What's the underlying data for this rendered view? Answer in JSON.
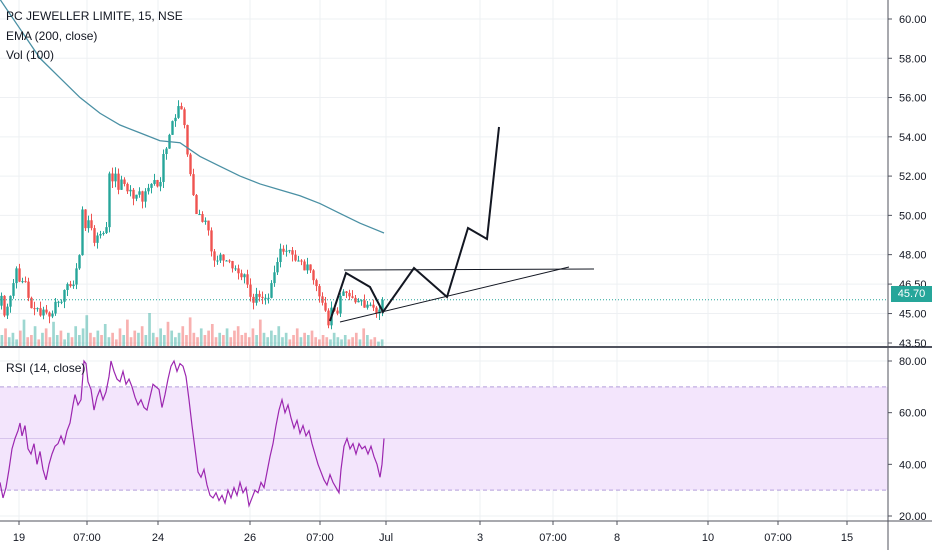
{
  "header": {
    "symbol_line": "PC JEWELLER LIMITE, 15, NSE",
    "ema_label": "EMA (200, close)",
    "vol_label": "Vol (100)",
    "rsi_label": "RSI (14, close)"
  },
  "last_price": "45.70",
  "colors": {
    "up": "#26a69a",
    "down": "#ef5350",
    "ema": "#4a90a4",
    "rsi": "#9c27b0",
    "rsi_band": "#f3e5fc",
    "last_price_line": "#26a69a",
    "drawing": "#131722"
  },
  "chart_data": [
    {
      "type": "candlestick",
      "title": "PC JEWELLER LIMITE, 15, NSE",
      "price_axis_ticks": [
        "60.00",
        "58.00",
        "56.00",
        "54.00",
        "52.00",
        "50.00",
        "48.00",
        "46.50",
        "45.00",
        "43.50"
      ],
      "time_axis_ticks": [
        "19",
        "07:00",
        "24",
        "26",
        "07:00",
        "Jul",
        "3",
        "07:00",
        "8",
        "10",
        "07:00",
        "15"
      ],
      "ylim": [
        43.0,
        61.5
      ],
      "price_path": [
        [
          0,
          45.4
        ],
        [
          3,
          45.9
        ],
        [
          6,
          44.9
        ],
        [
          10,
          45.5
        ],
        [
          14,
          46.3
        ],
        [
          18,
          47.3
        ],
        [
          22,
          46.4
        ],
        [
          26,
          46.9
        ],
        [
          30,
          45.8
        ],
        [
          34,
          45.1
        ],
        [
          38,
          45.4
        ],
        [
          42,
          44.9
        ],
        [
          46,
          45.3
        ],
        [
          50,
          44.8
        ],
        [
          54,
          45.0
        ],
        [
          58,
          45.8
        ],
        [
          62,
          45.4
        ],
        [
          66,
          46.2
        ],
        [
          70,
          46.6
        ],
        [
          74,
          46.2
        ],
        [
          78,
          47.3
        ],
        [
          82,
          48.2
        ],
        [
          84,
          50.3
        ],
        [
          86,
          48.8
        ],
        [
          88,
          49.9
        ],
        [
          92,
          49.6
        ],
        [
          96,
          48.6
        ],
        [
          100,
          49.1
        ],
        [
          104,
          49.0
        ],
        [
          108,
          49.4
        ],
        [
          110,
          52.5
        ],
        [
          113,
          51.4
        ],
        [
          116,
          52.4
        ],
        [
          120,
          51.3
        ],
        [
          124,
          52.0
        ],
        [
          128,
          51.2
        ],
        [
          132,
          51.3
        ],
        [
          136,
          50.7
        ],
        [
          140,
          51.4
        ],
        [
          144,
          50.7
        ],
        [
          148,
          51.4
        ],
        [
          152,
          51.4
        ],
        [
          155,
          52.0
        ],
        [
          158,
          51.4
        ],
        [
          162,
          51.7
        ],
        [
          166,
          53.6
        ],
        [
          170,
          53.2
        ],
        [
          172,
          55.0
        ],
        [
          175,
          54.7
        ],
        [
          178,
          55.1
        ],
        [
          181,
          55.8
        ],
        [
          184,
          55.2
        ],
        [
          187,
          54.3
        ],
        [
          190,
          52.5
        ],
        [
          193,
          51.9
        ],
        [
          196,
          50.6
        ],
        [
          199,
          49.8
        ],
        [
          202,
          50.2
        ],
        [
          205,
          49.4
        ],
        [
          208,
          49.9
        ],
        [
          211,
          48.9
        ],
        [
          214,
          47.8
        ],
        [
          218,
          47.6
        ],
        [
          222,
          48.0
        ],
        [
          226,
          47.6
        ],
        [
          230,
          47.8
        ],
        [
          234,
          47.3
        ],
        [
          238,
          47.3
        ],
        [
          242,
          46.8
        ],
        [
          246,
          47.0
        ],
        [
          250,
          46.3
        ],
        [
          254,
          45.4
        ],
        [
          258,
          46.0
        ],
        [
          262,
          45.8
        ],
        [
          266,
          45.8
        ],
        [
          270,
          45.8
        ],
        [
          274,
          46.8
        ],
        [
          278,
          47.4
        ],
        [
          282,
          48.3
        ],
        [
          286,
          48.1
        ],
        [
          290,
          48.3
        ],
        [
          294,
          48.0
        ],
        [
          298,
          47.6
        ],
        [
          302,
          47.8
        ],
        [
          306,
          47.2
        ],
        [
          310,
          47.6
        ],
        [
          314,
          46.8
        ],
        [
          318,
          46.4
        ],
        [
          322,
          45.7
        ],
        [
          326,
          45.4
        ],
        [
          330,
          44.4
        ],
        [
          334,
          45.6
        ],
        [
          338,
          44.7
        ],
        [
          342,
          45.9
        ],
        [
          346,
          46.2
        ],
        [
          350,
          45.9
        ],
        [
          354,
          45.8
        ],
        [
          358,
          45.5
        ],
        [
          362,
          45.8
        ],
        [
          366,
          45.3
        ],
        [
          370,
          45.5
        ],
        [
          374,
          45.4
        ],
        [
          378,
          45.0
        ],
        [
          381,
          45.2
        ],
        [
          384,
          45.7
        ]
      ],
      "volume_bars": [
        5,
        8,
        4,
        6,
        3,
        7,
        12,
        4,
        5,
        9,
        3,
        6,
        8,
        4,
        11,
        5,
        7,
        3,
        6,
        4,
        9,
        5,
        8,
        14,
        6,
        4,
        7,
        5,
        10,
        4,
        6,
        3,
        8,
        5,
        12,
        4,
        7,
        6,
        9,
        5,
        15,
        6,
        4,
        8,
        5,
        11,
        7,
        4,
        6,
        9,
        5,
        13,
        6,
        4,
        8,
        5,
        7,
        10,
        4,
        6,
        5,
        8,
        4,
        7,
        9,
        5,
        6,
        4,
        8,
        5,
        12,
        6,
        4,
        7,
        5,
        9,
        4,
        6,
        3,
        5,
        8,
        4,
        6,
        5,
        7,
        4,
        3,
        5,
        4,
        3,
        6,
        4,
        3,
        5,
        3,
        4,
        6,
        3,
        8,
        5,
        3,
        4,
        2,
        3
      ],
      "ema_path": [
        [
          0,
          61.0
        ],
        [
          20,
          59.5
        ],
        [
          40,
          58.0
        ],
        [
          60,
          57.0
        ],
        [
          80,
          56.0
        ],
        [
          100,
          55.2
        ],
        [
          120,
          54.6
        ],
        [
          140,
          54.2
        ],
        [
          160,
          53.8
        ],
        [
          180,
          53.7
        ],
        [
          200,
          53.0
        ],
        [
          220,
          52.5
        ],
        [
          240,
          52.0
        ],
        [
          260,
          51.6
        ],
        [
          280,
          51.3
        ],
        [
          300,
          51.0
        ],
        [
          320,
          50.6
        ],
        [
          340,
          50.1
        ],
        [
          360,
          49.6
        ],
        [
          384,
          49.1
        ]
      ]
    },
    {
      "type": "line",
      "title": "RSI (14, close)",
      "rsi_axis_ticks": [
        "80.00",
        "60.00",
        "40.00",
        "20.00"
      ],
      "ylim": [
        18,
        82
      ],
      "band": [
        30,
        70
      ],
      "rsi_path": [
        [
          0,
          33
        ],
        [
          3,
          27
        ],
        [
          6,
          31
        ],
        [
          9,
          38
        ],
        [
          12,
          46
        ],
        [
          15,
          50
        ],
        [
          18,
          53
        ],
        [
          20,
          56
        ],
        [
          22,
          51
        ],
        [
          25,
          55
        ],
        [
          28,
          46
        ],
        [
          31,
          44
        ],
        [
          34,
          48
        ],
        [
          37,
          40
        ],
        [
          40,
          45
        ],
        [
          43,
          38
        ],
        [
          46,
          34
        ],
        [
          49,
          40
        ],
        [
          52,
          44
        ],
        [
          55,
          47
        ],
        [
          58,
          48
        ],
        [
          61,
          51
        ],
        [
          64,
          48
        ],
        [
          67,
          53
        ],
        [
          70,
          56
        ],
        [
          73,
          63
        ],
        [
          75,
          67
        ],
        [
          78,
          63
        ],
        [
          81,
          65
        ],
        [
          84,
          80
        ],
        [
          86,
          79
        ],
        [
          88,
          72
        ],
        [
          91,
          69
        ],
        [
          94,
          61
        ],
        [
          97,
          66
        ],
        [
          100,
          69
        ],
        [
          103,
          65
        ],
        [
          106,
          68
        ],
        [
          109,
          74
        ],
        [
          111,
          80
        ],
        [
          114,
          76
        ],
        [
          117,
          73
        ],
        [
          120,
          72
        ],
        [
          123,
          76
        ],
        [
          126,
          71
        ],
        [
          129,
          73
        ],
        [
          132,
          70
        ],
        [
          135,
          66
        ],
        [
          138,
          63
        ],
        [
          141,
          65
        ],
        [
          144,
          62
        ],
        [
          147,
          61
        ],
        [
          150,
          66
        ],
        [
          153,
          71
        ],
        [
          156,
          70
        ],
        [
          159,
          69
        ],
        [
          162,
          62
        ],
        [
          165,
          67
        ],
        [
          168,
          73
        ],
        [
          171,
          78
        ],
        [
          174,
          80
        ],
        [
          177,
          76
        ],
        [
          180,
          79
        ],
        [
          183,
          78
        ],
        [
          186,
          74
        ],
        [
          189,
          65
        ],
        [
          192,
          55
        ],
        [
          195,
          46
        ],
        [
          198,
          37
        ],
        [
          201,
          35
        ],
        [
          204,
          38
        ],
        [
          207,
          32
        ],
        [
          210,
          28
        ],
        [
          213,
          27
        ],
        [
          216,
          29
        ],
        [
          219,
          26
        ],
        [
          222,
          28
        ],
        [
          225,
          25
        ],
        [
          228,
          30
        ],
        [
          231,
          27
        ],
        [
          234,
          31
        ],
        [
          237,
          28
        ],
        [
          240,
          33
        ],
        [
          243,
          29
        ],
        [
          246,
          31
        ],
        [
          249,
          24
        ],
        [
          252,
          27
        ],
        [
          255,
          30
        ],
        [
          258,
          29
        ],
        [
          261,
          33
        ],
        [
          264,
          31
        ],
        [
          267,
          37
        ],
        [
          270,
          43
        ],
        [
          273,
          48
        ],
        [
          276,
          55
        ],
        [
          279,
          61
        ],
        [
          282,
          65
        ],
        [
          285,
          60
        ],
        [
          288,
          63
        ],
        [
          291,
          58
        ],
        [
          294,
          54
        ],
        [
          297,
          57
        ],
        [
          300,
          52
        ],
        [
          303,
          55
        ],
        [
          306,
          51
        ],
        [
          309,
          53
        ],
        [
          312,
          48
        ],
        [
          315,
          44
        ],
        [
          318,
          40
        ],
        [
          321,
          37
        ],
        [
          324,
          34
        ],
        [
          327,
          32
        ],
        [
          330,
          36
        ],
        [
          333,
          33
        ],
        [
          336,
          31
        ],
        [
          339,
          29
        ],
        [
          341,
          38
        ],
        [
          344,
          47
        ],
        [
          347,
          50
        ],
        [
          350,
          46
        ],
        [
          353,
          48
        ],
        [
          356,
          44
        ],
        [
          359,
          48
        ],
        [
          362,
          46
        ],
        [
          365,
          47
        ],
        [
          368,
          44
        ],
        [
          371,
          47
        ],
        [
          374,
          43
        ],
        [
          377,
          40
        ],
        [
          380,
          35
        ],
        [
          382,
          40
        ],
        [
          384,
          50
        ]
      ]
    }
  ]
}
